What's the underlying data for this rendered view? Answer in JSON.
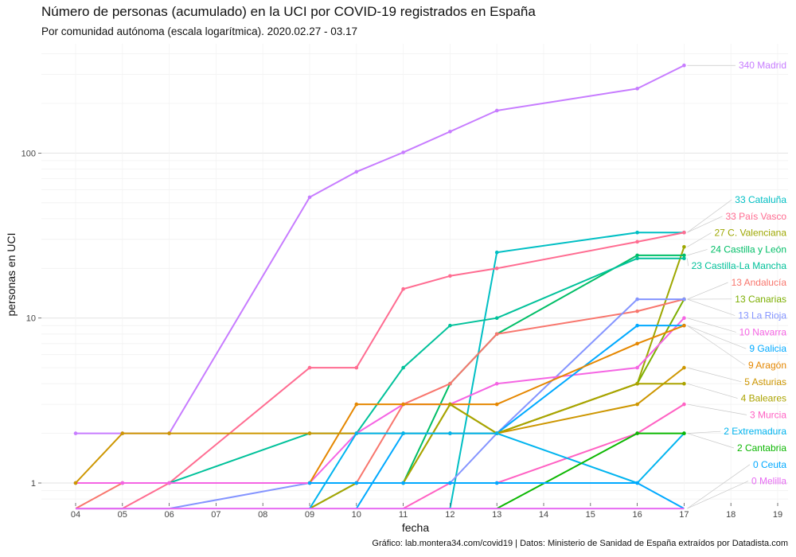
{
  "title": "Número de personas (acumulado) en la UCI por COVID-19 registrados en España",
  "subtitle": "Por comunidad autónoma (escala logarítmica). 2020.02.27 - 03.17",
  "caption": "Gráfico: lab.montera34.com/covid19 | Datos: Ministerio de Sanidad de España extraídos por Datadista.com",
  "chart_data": {
    "type": "line",
    "title": "Número de personas (acumulado) en la UCI por COVID-19 registrados en España",
    "subtitle": "Por comunidad autónoma (escala logarítmica). 2020.02.27 - 03.17",
    "xlabel": "fecha",
    "ylabel": "personas en UCI",
    "y_scale": "log",
    "grid": true,
    "legend": "labels at line ends (right)",
    "x_ticks": [
      "04",
      "05",
      "06",
      "07",
      "08",
      "09",
      "10",
      "11",
      "12",
      "13",
      "14",
      "15",
      "16",
      "17",
      "18",
      "19"
    ],
    "y_ticks": [
      {
        "label": "1",
        "value": 1
      },
      {
        "label": "10",
        "value": 10
      },
      {
        "label": "100",
        "value": 100
      }
    ],
    "series": [
      {
        "name": "Madrid",
        "end_label": "340 Madrid",
        "color": "#c77cff",
        "points": [
          [
            "04",
            2
          ],
          [
            "05",
            2
          ],
          [
            "06",
            2
          ],
          [
            "09",
            54
          ],
          [
            "10",
            77
          ],
          [
            "11",
            101
          ],
          [
            "12",
            135
          ],
          [
            "13",
            181
          ],
          [
            "16",
            246
          ],
          [
            "17",
            340
          ]
        ]
      },
      {
        "name": "Cataluña",
        "end_label": "33 Cataluña",
        "color": "#00bfc4",
        "points": [
          [
            "12",
            0.7
          ],
          [
            "13",
            25
          ],
          [
            "16",
            33
          ],
          [
            "17",
            33
          ]
        ]
      },
      {
        "name": "País Vasco",
        "end_label": "33 País Vasco",
        "color": "#ff6c91",
        "points": [
          [
            "04",
            0.7
          ],
          [
            "05",
            0.7
          ],
          [
            "06",
            1
          ],
          [
            "09",
            5
          ],
          [
            "10",
            5
          ],
          [
            "11",
            15
          ],
          [
            "12",
            18
          ],
          [
            "13",
            20
          ],
          [
            "16",
            29
          ],
          [
            "17",
            33
          ]
        ]
      },
      {
        "name": "C. Valenciana",
        "end_label": "27 C. Valenciana",
        "color": "#9da700",
        "points": [
          [
            "13",
            2
          ],
          [
            "16",
            4
          ],
          [
            "17",
            27
          ]
        ]
      },
      {
        "name": "Castilla y León",
        "end_label": "24 Castilla y León",
        "color": "#00be67",
        "points": [
          [
            "09",
            0.7
          ],
          [
            "10",
            1
          ],
          [
            "11",
            1
          ],
          [
            "12",
            4
          ],
          [
            "13",
            8
          ],
          [
            "16",
            24
          ],
          [
            "17",
            24
          ]
        ]
      },
      {
        "name": "Castilla-La Mancha",
        "end_label": "23 Castilla-La Mancha",
        "color": "#00c19a",
        "points": [
          [
            "04",
            1
          ],
          [
            "05",
            1
          ],
          [
            "06",
            1
          ],
          [
            "09",
            2
          ],
          [
            "10",
            2
          ],
          [
            "11",
            5
          ],
          [
            "12",
            9
          ],
          [
            "13",
            10
          ],
          [
            "16",
            23
          ],
          [
            "17",
            23
          ]
        ]
      },
      {
        "name": "Andalucía",
        "end_label": "13 Andalucía",
        "color": "#f8766d",
        "points": [
          [
            "04",
            0.7
          ],
          [
            "05",
            1
          ],
          [
            "06",
            1
          ],
          [
            "09",
            1
          ],
          [
            "10",
            1
          ],
          [
            "11",
            3
          ],
          [
            "12",
            4
          ],
          [
            "13",
            8
          ],
          [
            "16",
            11
          ],
          [
            "17",
            13
          ]
        ]
      },
      {
        "name": "Canarias",
        "end_label": "13 Canarias",
        "color": "#7cae00",
        "points": [
          [
            "11",
            1
          ],
          [
            "12",
            3
          ],
          [
            "13",
            2
          ],
          [
            "16",
            4
          ],
          [
            "17",
            13
          ]
        ]
      },
      {
        "name": "La Rioja",
        "end_label": "13 La Rioja",
        "color": "#8494ff",
        "points": [
          [
            "04",
            0.7
          ],
          [
            "06",
            0.7
          ],
          [
            "09",
            1
          ],
          [
            "10",
            1
          ],
          [
            "11",
            1
          ],
          [
            "12",
            1
          ],
          [
            "13",
            2
          ],
          [
            "16",
            13
          ],
          [
            "17",
            13
          ]
        ]
      },
      {
        "name": "Navarra",
        "end_label": "10 Navarra",
        "color": "#f564e3",
        "points": [
          [
            "04",
            1
          ],
          [
            "05",
            1
          ],
          [
            "06",
            1
          ],
          [
            "09",
            1
          ],
          [
            "10",
            2
          ],
          [
            "11",
            3
          ],
          [
            "12",
            3
          ],
          [
            "13",
            4
          ],
          [
            "16",
            5
          ],
          [
            "17",
            10
          ]
        ]
      },
      {
        "name": "Galicia",
        "end_label": "9 Galicia",
        "color": "#00a9ff",
        "points": [
          [
            "10",
            0.7
          ],
          [
            "11",
            2
          ],
          [
            "12",
            2
          ],
          [
            "13",
            2
          ],
          [
            "16",
            9
          ],
          [
            "17",
            9
          ]
        ]
      },
      {
        "name": "Aragón",
        "end_label": "9 Aragón",
        "color": "#e58700",
        "points": [
          [
            "09",
            1
          ],
          [
            "10",
            3
          ],
          [
            "11",
            3
          ],
          [
            "12",
            3
          ],
          [
            "13",
            3
          ],
          [
            "16",
            7
          ],
          [
            "17",
            9
          ]
        ]
      },
      {
        "name": "Asturias",
        "end_label": "5 Asturias",
        "color": "#cd9600",
        "points": [
          [
            "04",
            1
          ],
          [
            "05",
            2
          ],
          [
            "06",
            2
          ],
          [
            "09",
            2
          ],
          [
            "10",
            2
          ],
          [
            "11",
            2
          ],
          [
            "12",
            2
          ],
          [
            "13",
            2
          ],
          [
            "16",
            3
          ],
          [
            "17",
            5
          ]
        ]
      },
      {
        "name": "Baleares",
        "end_label": "4 Baleares",
        "color": "#abA300",
        "points": [
          [
            "09",
            0.7
          ],
          [
            "10",
            1
          ],
          [
            "11",
            1
          ],
          [
            "12",
            3
          ],
          [
            "13",
            2
          ],
          [
            "16",
            4
          ],
          [
            "17",
            4
          ]
        ]
      },
      {
        "name": "Murcia",
        "end_label": "3 Murcia",
        "color": "#ff61c3",
        "points": [
          [
            "11",
            0.7
          ],
          [
            "12",
            1
          ],
          [
            "13",
            1
          ],
          [
            "16",
            2
          ],
          [
            "17",
            3
          ]
        ]
      },
      {
        "name": "Extremadura",
        "end_label": "2 Extremadura",
        "color": "#00b4ef",
        "points": [
          [
            "09",
            0.7
          ],
          [
            "10",
            2
          ],
          [
            "11",
            2
          ],
          [
            "12",
            2
          ],
          [
            "13",
            2
          ],
          [
            "16",
            1
          ],
          [
            "17",
            2
          ]
        ]
      },
      {
        "name": "Cantabria",
        "end_label": "2 Cantabria",
        "color": "#0cb702",
        "points": [
          [
            "13",
            0.7
          ],
          [
            "16",
            2
          ],
          [
            "17",
            2
          ]
        ]
      },
      {
        "name": "Ceuta",
        "end_label": "0 Ceuta",
        "color": "#00a9ff",
        "points": [
          [
            "09",
            1
          ],
          [
            "10",
            1
          ],
          [
            "11",
            1
          ],
          [
            "12",
            1
          ],
          [
            "13",
            1
          ],
          [
            "16",
            1
          ],
          [
            "17",
            0.7
          ]
        ]
      },
      {
        "name": "Melilla",
        "end_label": "0 Melilla",
        "color": "#e76bf3",
        "points": [
          [
            "04",
            0.7
          ],
          [
            "05",
            0.7
          ],
          [
            "06",
            0.7
          ],
          [
            "09",
            0.7
          ],
          [
            "10",
            0.7
          ],
          [
            "11",
            0.7
          ],
          [
            "12",
            0.7
          ],
          [
            "13",
            0.7
          ],
          [
            "16",
            0.7
          ],
          [
            "17",
            0.7
          ]
        ]
      }
    ]
  }
}
